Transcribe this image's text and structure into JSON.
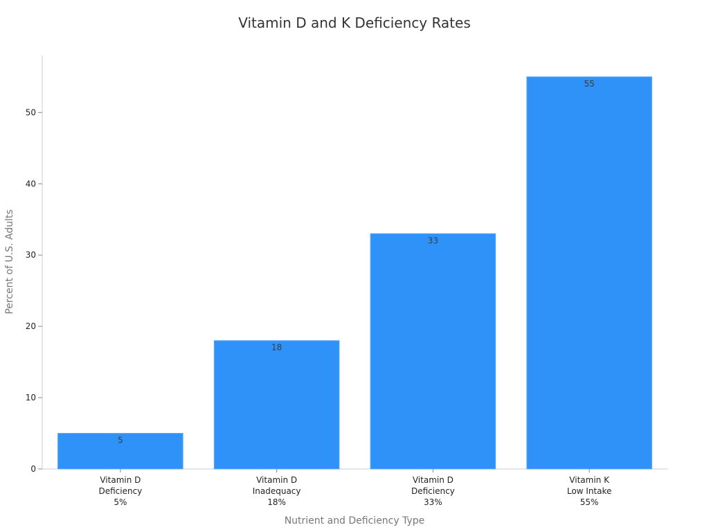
{
  "chart_data": {
    "type": "bar",
    "title": "Vitamin D and K Deficiency Rates",
    "xlabel": "Nutrient and Deficiency Type",
    "ylabel": "Percent of U.S. Adults",
    "categories": [
      [
        "Vitamin D",
        "Deficiency",
        "5%"
      ],
      [
        "Vitamin D",
        "Inadequacy",
        "18%"
      ],
      [
        "Vitamin D",
        "Deficiency",
        "33%"
      ],
      [
        "Vitamin K",
        "Low Intake",
        "55%"
      ]
    ],
    "values": [
      5,
      18,
      33,
      55
    ],
    "data_labels": [
      "5",
      "18",
      "33",
      "55"
    ],
    "ylim": [
      0,
      58
    ],
    "yticks": [
      0,
      10,
      20,
      30,
      40,
      50
    ],
    "grid": false,
    "legend": "none",
    "colors": {
      "bar": "#2f92f8",
      "bar_edge": "#5aa9fa",
      "axis": "#cccccc",
      "title": "#333333",
      "axis_title": "#777777"
    }
  }
}
